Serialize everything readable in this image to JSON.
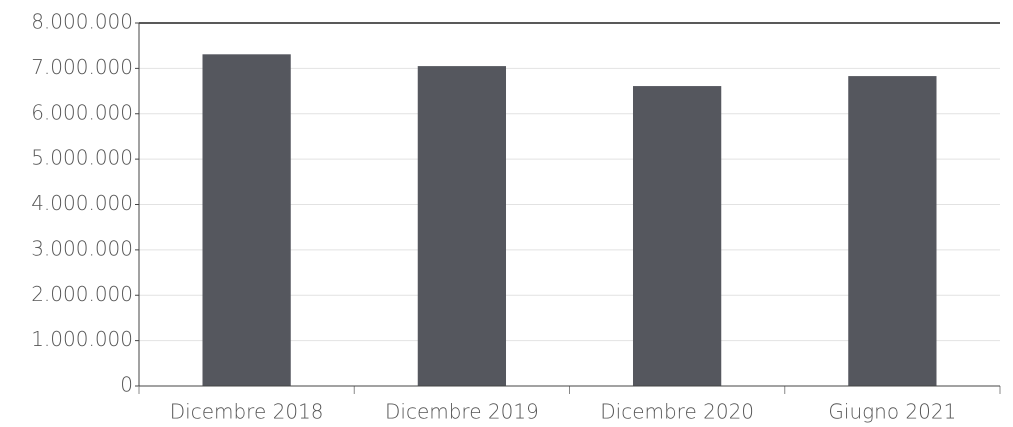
{
  "chart_data": {
    "type": "bar",
    "categories": [
      "Dicembre 2018",
      "Dicembre 2019",
      "Dicembre 2020",
      "Giugno 2021"
    ],
    "values": [
      7310000,
      7050000,
      6610000,
      6830000
    ],
    "color": "#55575e",
    "ylim": [
      0,
      8000000
    ],
    "yticks": [
      0,
      {
        "value": 1000000,
        "label": "1.000.000"
      },
      {
        "value": 2000000,
        "label": "2.000.000"
      },
      {
        "value": 3000000,
        "label": "3.000.000"
      },
      {
        "value": 4000000,
        "label": "4.000.000"
      },
      {
        "value": 5000000,
        "label": "5.000.000"
      },
      {
        "value": 6000000,
        "label": "6.000.000"
      },
      {
        "value": 7000000,
        "label": "7.000.000"
      },
      {
        "value": 8000000,
        "label": "8.000.000"
      }
    ],
    "grid": true
  }
}
